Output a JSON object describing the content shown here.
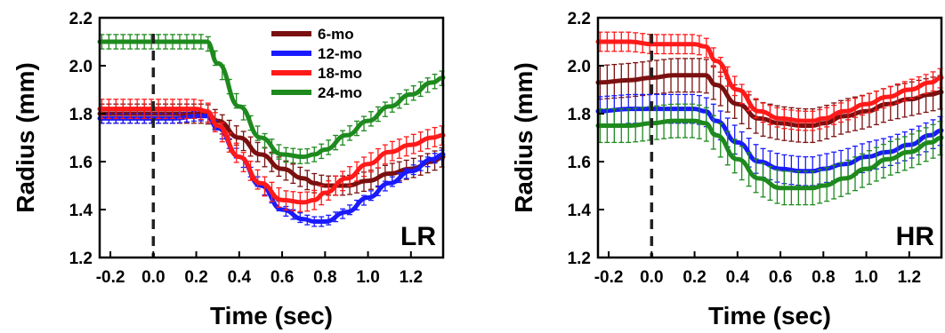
{
  "chart_data": [
    {
      "type": "line",
      "panel_label": "LR",
      "xlabel": "Time (sec)",
      "ylabel": "Radius (mm)",
      "xlim": [
        -0.25,
        1.35
      ],
      "ylim": [
        1.2,
        2.2
      ],
      "xticks": [
        "-0.2",
        "0.0",
        "0.2",
        "0.4",
        "0.6",
        "0.8",
        "1.0",
        "1.2"
      ],
      "xtick_values": [
        -0.2,
        0.0,
        0.2,
        0.4,
        0.6,
        0.8,
        1.0,
        1.2
      ],
      "yticks": [
        "1.2",
        "1.4",
        "1.6",
        "1.8",
        "2.0",
        "2.2"
      ],
      "ytick_values": [
        1.2,
        1.4,
        1.6,
        1.8,
        2.0,
        2.2
      ],
      "reference_line_x": 0.0,
      "grid": false,
      "legend_position": "top-center",
      "x": [
        -0.25,
        -0.1,
        0.0,
        0.1,
        0.2,
        0.25,
        0.3,
        0.4,
        0.5,
        0.6,
        0.7,
        0.75,
        0.8,
        0.9,
        1.0,
        1.1,
        1.2,
        1.3,
        1.35
      ],
      "series": [
        {
          "name": "6-mo",
          "color": "#7b1010",
          "values": [
            1.8,
            1.8,
            1.8,
            1.8,
            1.8,
            1.8,
            1.77,
            1.7,
            1.63,
            1.57,
            1.53,
            1.51,
            1.5,
            1.5,
            1.52,
            1.55,
            1.57,
            1.6,
            1.62
          ],
          "error": 0.04
        },
        {
          "name": "12-mo",
          "color": "#1a1aff",
          "values": [
            1.78,
            1.78,
            1.78,
            1.78,
            1.79,
            1.79,
            1.74,
            1.62,
            1.5,
            1.4,
            1.36,
            1.35,
            1.35,
            1.39,
            1.45,
            1.51,
            1.56,
            1.61,
            1.63
          ],
          "error": 0.02
        },
        {
          "name": "18-mo",
          "color": "#ff1a1a",
          "values": [
            1.82,
            1.82,
            1.82,
            1.82,
            1.82,
            1.81,
            1.75,
            1.62,
            1.51,
            1.44,
            1.43,
            1.44,
            1.47,
            1.53,
            1.59,
            1.64,
            1.67,
            1.7,
            1.71
          ],
          "error": 0.04
        },
        {
          "name": "24-mo",
          "color": "#1e8a1e",
          "values": [
            2.1,
            2.1,
            2.1,
            2.1,
            2.1,
            2.1,
            2.01,
            1.83,
            1.7,
            1.63,
            1.62,
            1.63,
            1.65,
            1.71,
            1.77,
            1.83,
            1.88,
            1.93,
            1.95
          ],
          "error": 0.03
        }
      ]
    },
    {
      "type": "line",
      "panel_label": "HR",
      "xlabel": "Time (sec)",
      "ylabel": "Radius (mm)",
      "xlim": [
        -0.25,
        1.35
      ],
      "ylim": [
        1.2,
        2.2
      ],
      "xticks": [
        "-0.2",
        "0.0",
        "0.2",
        "0.4",
        "0.6",
        "0.8",
        "1.0",
        "1.2"
      ],
      "xtick_values": [
        -0.2,
        0.0,
        0.2,
        0.4,
        0.6,
        0.8,
        1.0,
        1.2
      ],
      "yticks": [
        "1.2",
        "1.4",
        "1.6",
        "1.8",
        "2.0",
        "2.2"
      ],
      "ytick_values": [
        1.2,
        1.4,
        1.6,
        1.8,
        2.0,
        2.2
      ],
      "reference_line_x": 0.0,
      "grid": false,
      "x": [
        -0.25,
        -0.1,
        0.0,
        0.1,
        0.2,
        0.25,
        0.3,
        0.4,
        0.5,
        0.6,
        0.7,
        0.75,
        0.8,
        0.9,
        1.0,
        1.1,
        1.2,
        1.3,
        1.35
      ],
      "series": [
        {
          "name": "6-mo",
          "color": "#7b1010",
          "values": [
            1.93,
            1.94,
            1.95,
            1.96,
            1.96,
            1.96,
            1.92,
            1.84,
            1.78,
            1.76,
            1.75,
            1.75,
            1.76,
            1.79,
            1.81,
            1.84,
            1.86,
            1.88,
            1.89
          ],
          "error": 0.07
        },
        {
          "name": "12-mo",
          "color": "#1a1aff",
          "values": [
            1.81,
            1.82,
            1.82,
            1.82,
            1.82,
            1.81,
            1.77,
            1.68,
            1.6,
            1.57,
            1.56,
            1.56,
            1.57,
            1.59,
            1.62,
            1.64,
            1.67,
            1.71,
            1.73
          ],
          "error": 0.06
        },
        {
          "name": "18-mo",
          "color": "#ff1a1a",
          "values": [
            2.1,
            2.1,
            2.09,
            2.09,
            2.09,
            2.08,
            2.02,
            1.9,
            1.81,
            1.78,
            1.77,
            1.77,
            1.78,
            1.81,
            1.84,
            1.87,
            1.9,
            1.93,
            1.95
          ],
          "error": 0.04
        },
        {
          "name": "24-mo",
          "color": "#1e8a1e",
          "values": [
            1.75,
            1.75,
            1.76,
            1.77,
            1.77,
            1.76,
            1.71,
            1.61,
            1.53,
            1.49,
            1.49,
            1.49,
            1.5,
            1.53,
            1.57,
            1.61,
            1.64,
            1.68,
            1.7
          ],
          "error": 0.07
        }
      ]
    }
  ]
}
